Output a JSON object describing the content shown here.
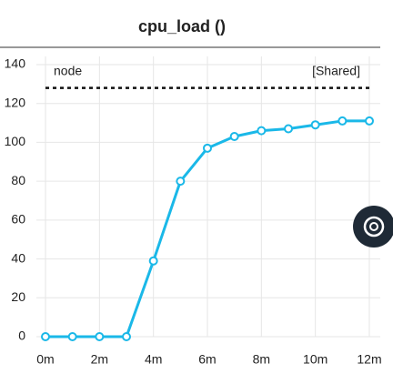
{
  "chart_data": {
    "type": "line",
    "title": "cpu_load ()",
    "x": [
      0,
      1,
      2,
      3,
      4,
      5,
      6,
      7,
      8,
      9,
      10,
      11,
      12
    ],
    "series": [
      {
        "color": "#1ab8e8",
        "values": [
          0,
          0,
          0,
          0,
          39,
          80,
          97,
          103,
          106,
          107,
          109,
          111,
          111
        ]
      }
    ],
    "xlim": [
      0,
      12
    ],
    "xticks": [
      {
        "value": 0,
        "label": "0m"
      },
      {
        "value": 2,
        "label": "2m"
      },
      {
        "value": 4,
        "label": "4m"
      },
      {
        "value": 6,
        "label": "6m"
      },
      {
        "value": 8,
        "label": "8m"
      },
      {
        "value": 10,
        "label": "10m"
      },
      {
        "value": 12,
        "label": "12m"
      }
    ],
    "ylim": [
      0,
      140
    ],
    "yticks": [
      0,
      20,
      40,
      60,
      80,
      100,
      120,
      140
    ],
    "grid": true,
    "reference_line": {
      "value": 128,
      "label": "node",
      "right_label": "[Shared]",
      "color": "#111"
    }
  }
}
